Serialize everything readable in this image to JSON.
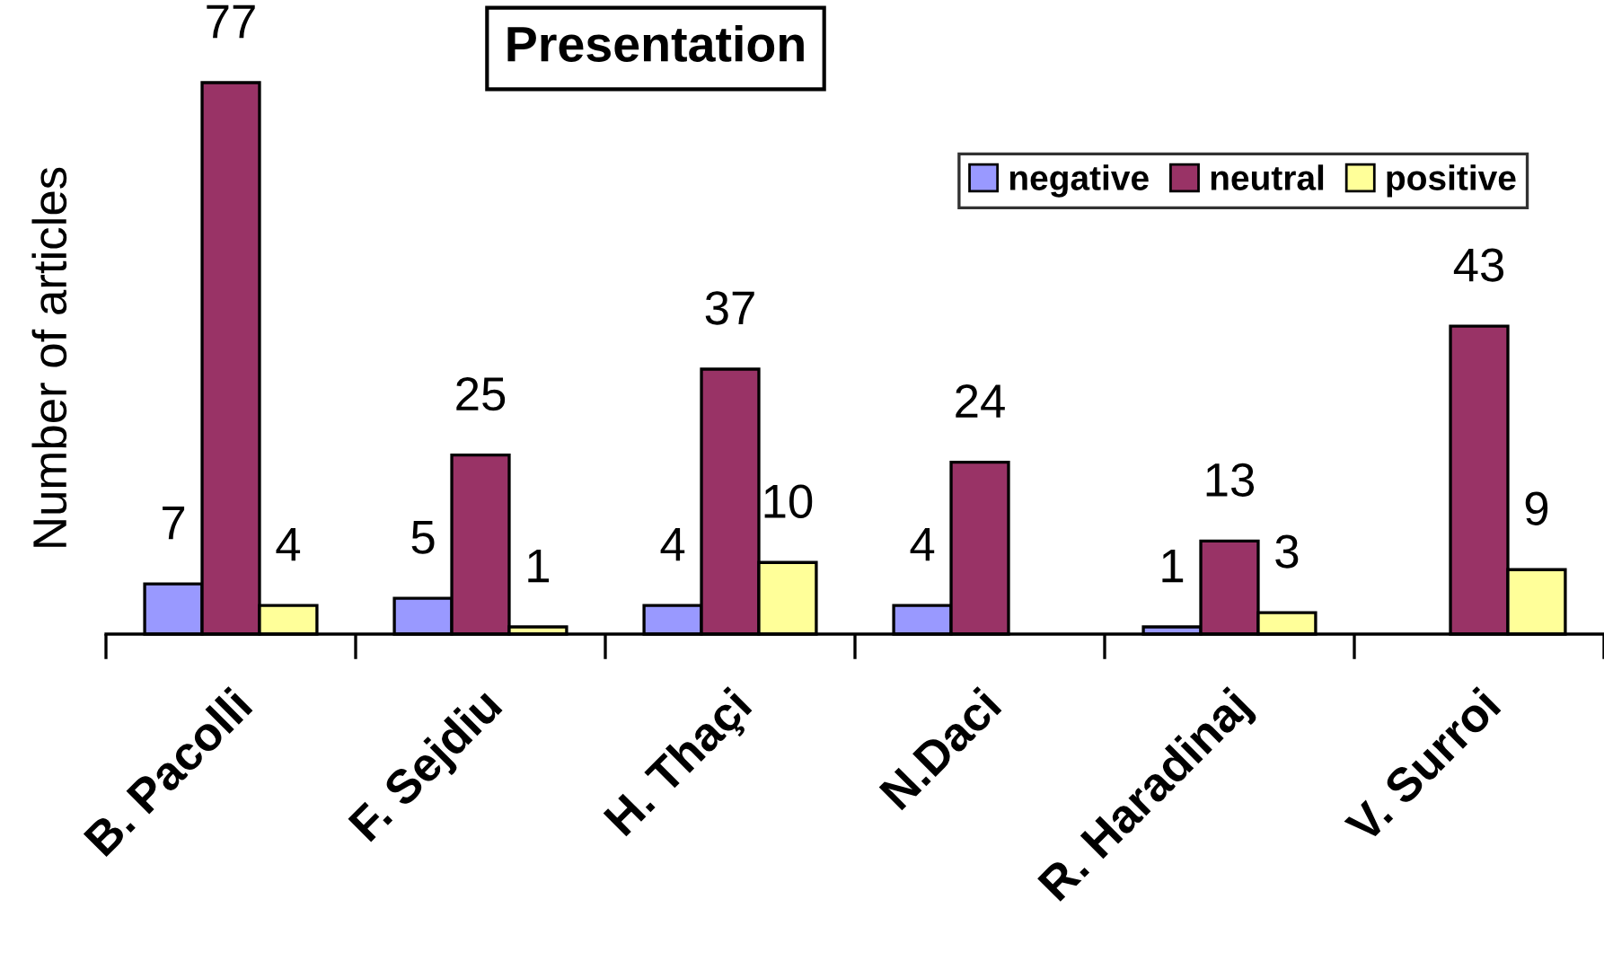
{
  "chart_data": {
    "type": "bar",
    "title": "Presentation",
    "ylabel": "Number of articles",
    "categories": [
      "B. Pacolli",
      "F. Sejdiu",
      "H. Thaçi",
      "N.Daci",
      "R. Haradinaj",
      "V. Surroi"
    ],
    "series": [
      {
        "name": "negative",
        "color": "#9999ff",
        "values": [
          7,
          5,
          4,
          4,
          1,
          null
        ]
      },
      {
        "name": "neutral",
        "color": "#993366",
        "values": [
          77,
          25,
          37,
          24,
          13,
          43
        ]
      },
      {
        "name": "positive",
        "color": "#ffff99",
        "values": [
          4,
          1,
          10,
          null,
          3,
          9
        ]
      }
    ],
    "data_labels": true,
    "legend": "top right",
    "grid": false
  }
}
